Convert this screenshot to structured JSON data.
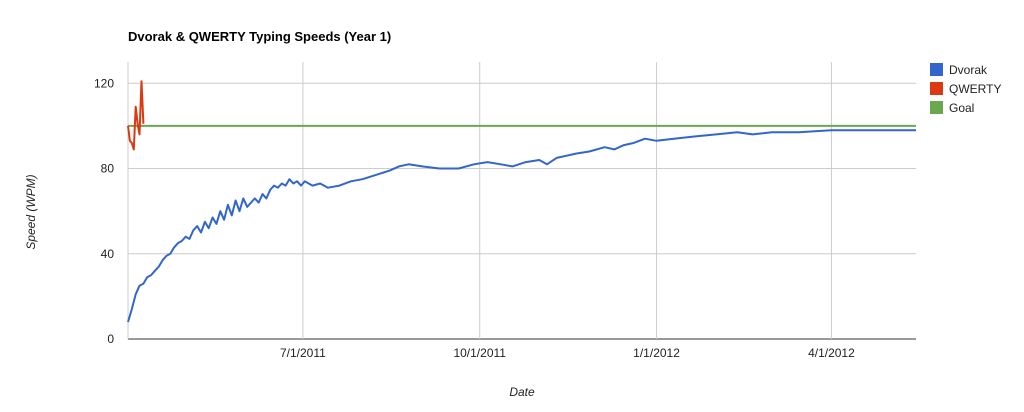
{
  "chart_data": {
    "type": "line",
    "title": "Dvorak & QWERTY Typing Speeds (Year 1)",
    "xlabel": "Date",
    "ylabel": "Speed (WPM)",
    "ylim": [
      0,
      130
    ],
    "xlim": [
      "2011-04-01",
      "2012-05-15"
    ],
    "yticks": [
      0,
      40,
      80,
      120
    ],
    "xticks": [
      {
        "date": "2011-07-01",
        "label": "7/1/2011"
      },
      {
        "date": "2011-10-01",
        "label": "10/1/2011"
      },
      {
        "date": "2012-01-01",
        "label": "1/1/2012"
      },
      {
        "date": "2012-04-01",
        "label": "4/1/2012"
      }
    ],
    "grid": true,
    "legend_position": "right",
    "series": [
      {
        "name": "Dvorak",
        "color": "#3366cc",
        "points": [
          [
            "2011-04-01",
            8
          ],
          [
            "2011-04-03",
            14
          ],
          [
            "2011-04-05",
            21
          ],
          [
            "2011-04-07",
            25
          ],
          [
            "2011-04-09",
            26
          ],
          [
            "2011-04-11",
            29
          ],
          [
            "2011-04-13",
            30
          ],
          [
            "2011-04-15",
            32
          ],
          [
            "2011-04-17",
            34
          ],
          [
            "2011-04-19",
            37
          ],
          [
            "2011-04-21",
            39
          ],
          [
            "2011-04-23",
            40
          ],
          [
            "2011-04-25",
            43
          ],
          [
            "2011-04-27",
            45
          ],
          [
            "2011-04-29",
            46
          ],
          [
            "2011-05-01",
            48
          ],
          [
            "2011-05-03",
            47
          ],
          [
            "2011-05-05",
            51
          ],
          [
            "2011-05-07",
            53
          ],
          [
            "2011-05-09",
            50
          ],
          [
            "2011-05-11",
            55
          ],
          [
            "2011-05-13",
            52
          ],
          [
            "2011-05-15",
            57
          ],
          [
            "2011-05-17",
            54
          ],
          [
            "2011-05-19",
            60
          ],
          [
            "2011-05-21",
            56
          ],
          [
            "2011-05-23",
            63
          ],
          [
            "2011-05-25",
            58
          ],
          [
            "2011-05-27",
            65
          ],
          [
            "2011-05-29",
            60
          ],
          [
            "2011-05-31",
            66
          ],
          [
            "2011-06-02",
            62
          ],
          [
            "2011-06-04",
            64
          ],
          [
            "2011-06-06",
            66
          ],
          [
            "2011-06-08",
            64
          ],
          [
            "2011-06-10",
            68
          ],
          [
            "2011-06-12",
            66
          ],
          [
            "2011-06-14",
            70
          ],
          [
            "2011-06-16",
            72
          ],
          [
            "2011-06-18",
            71
          ],
          [
            "2011-06-20",
            73
          ],
          [
            "2011-06-22",
            72
          ],
          [
            "2011-06-24",
            75
          ],
          [
            "2011-06-26",
            73
          ],
          [
            "2011-06-28",
            74
          ],
          [
            "2011-06-30",
            72
          ],
          [
            "2011-07-02",
            74
          ],
          [
            "2011-07-04",
            73
          ],
          [
            "2011-07-06",
            72
          ],
          [
            "2011-07-10",
            73
          ],
          [
            "2011-07-14",
            71
          ],
          [
            "2011-07-20",
            72
          ],
          [
            "2011-07-26",
            74
          ],
          [
            "2011-08-01",
            75
          ],
          [
            "2011-08-08",
            77
          ],
          [
            "2011-08-15",
            79
          ],
          [
            "2011-08-20",
            81
          ],
          [
            "2011-08-25",
            82
          ],
          [
            "2011-09-01",
            81
          ],
          [
            "2011-09-10",
            80
          ],
          [
            "2011-09-20",
            80
          ],
          [
            "2011-09-28",
            82
          ],
          [
            "2011-10-05",
            83
          ],
          [
            "2011-10-12",
            82
          ],
          [
            "2011-10-18",
            81
          ],
          [
            "2011-10-25",
            83
          ],
          [
            "2011-11-01",
            84
          ],
          [
            "2011-11-05",
            82
          ],
          [
            "2011-11-10",
            85
          ],
          [
            "2011-11-15",
            86
          ],
          [
            "2011-11-20",
            87
          ],
          [
            "2011-11-27",
            88
          ],
          [
            "2011-12-05",
            90
          ],
          [
            "2011-12-10",
            89
          ],
          [
            "2011-12-15",
            91
          ],
          [
            "2011-12-20",
            92
          ],
          [
            "2011-12-26",
            94
          ],
          [
            "2012-01-01",
            93
          ],
          [
            "2012-01-10",
            94
          ],
          [
            "2012-01-20",
            95
          ],
          [
            "2012-02-01",
            96
          ],
          [
            "2012-02-12",
            97
          ],
          [
            "2012-02-20",
            96
          ],
          [
            "2012-03-01",
            97
          ],
          [
            "2012-03-15",
            97
          ],
          [
            "2012-04-01",
            98
          ],
          [
            "2012-04-20",
            98
          ],
          [
            "2012-05-10",
            98
          ],
          [
            "2012-05-15",
            98
          ]
        ]
      },
      {
        "name": "QWERTY",
        "color": "#dc3912",
        "points": [
          [
            "2011-04-01",
            100
          ],
          [
            "2011-04-02",
            93
          ],
          [
            "2011-04-03",
            92
          ],
          [
            "2011-04-04",
            89
          ],
          [
            "2011-04-05",
            109
          ],
          [
            "2011-04-06",
            101
          ],
          [
            "2011-04-07",
            96
          ],
          [
            "2011-04-08",
            121
          ],
          [
            "2011-04-09",
            101
          ]
        ]
      },
      {
        "name": "Goal",
        "color": "#6aa84f",
        "points": [
          [
            "2011-04-01",
            100
          ],
          [
            "2012-05-15",
            100
          ]
        ]
      }
    ]
  }
}
